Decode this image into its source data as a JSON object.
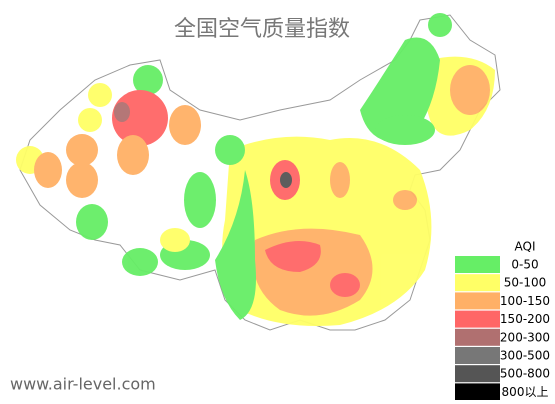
{
  "title": "全国空气质量指数",
  "legend": {
    "title": "AQI",
    "items": [
      {
        "label": "0-50",
        "color": "#66ee66"
      },
      {
        "label": "50-100",
        "color": "#ffff66"
      },
      {
        "label": "100-150",
        "color": "#ffb066"
      },
      {
        "label": "150-200",
        "color": "#ff6666"
      },
      {
        "label": "200-300",
        "color": "#b07070"
      },
      {
        "label": "300-500",
        "color": "#777777"
      },
      {
        "label": "500-800",
        "color": "#555555"
      },
      {
        "label": "800以上",
        "color": "#000000"
      }
    ]
  },
  "watermark": "www.air-level.com"
}
